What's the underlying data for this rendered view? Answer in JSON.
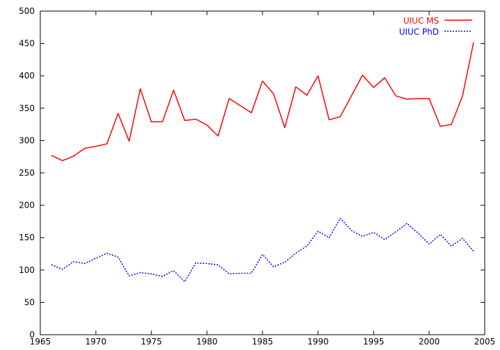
{
  "chart_data": {
    "type": "line",
    "title": "",
    "xlabel": "",
    "ylabel": "",
    "xlim": [
      1965,
      2005
    ],
    "ylim": [
      0,
      500
    ],
    "xticks": [
      1965,
      1970,
      1975,
      1980,
      1985,
      1990,
      1995,
      2000,
      2005
    ],
    "yticks": [
      0,
      50,
      100,
      150,
      200,
      250,
      300,
      350,
      400,
      450,
      500
    ],
    "grid": false,
    "legend_position": "top-right",
    "series": [
      {
        "name": "UIUC MS",
        "color": "#ff0000",
        "style": "solid",
        "x": [
          1966,
          1967,
          1968,
          1969,
          1970,
          1971,
          1972,
          1973,
          1974,
          1975,
          1976,
          1977,
          1978,
          1979,
          1980,
          1981,
          1982,
          1983,
          1984,
          1985,
          1986,
          1987,
          1988,
          1989,
          1990,
          1991,
          1992,
          1993,
          1994,
          1995,
          1996,
          1997,
          1998,
          1999,
          2000,
          2001,
          2002,
          2003,
          2004
        ],
        "y": [
          277,
          269,
          276,
          288,
          291,
          295,
          342,
          299,
          380,
          329,
          329,
          378,
          331,
          333,
          324,
          307,
          365,
          354,
          343,
          392,
          372,
          320,
          383,
          370,
          400,
          332,
          337,
          369,
          401,
          382,
          397,
          369,
          364,
          365,
          365,
          322,
          325,
          369,
          452
        ]
      },
      {
        "name": "UIUC PhD",
        "color": "#0000ff",
        "style": "dotted",
        "x": [
          1966,
          1967,
          1968,
          1969,
          1970,
          1971,
          1972,
          1973,
          1974,
          1975,
          1976,
          1977,
          1978,
          1979,
          1980,
          1981,
          1982,
          1983,
          1984,
          1985,
          1986,
          1987,
          1988,
          1989,
          1990,
          1991,
          1992,
          1993,
          1994,
          1995,
          1996,
          1997,
          1998,
          1999,
          2000,
          2001,
          2002,
          2003,
          2004
        ],
        "y": [
          108,
          101,
          113,
          110,
          118,
          126,
          120,
          91,
          96,
          94,
          90,
          99,
          82,
          111,
          110,
          108,
          94,
          95,
          95,
          124,
          105,
          112,
          126,
          137,
          160,
          150,
          180,
          161,
          152,
          158,
          147,
          159,
          172,
          157,
          140,
          155,
          137,
          149,
          129
        ]
      }
    ]
  }
}
